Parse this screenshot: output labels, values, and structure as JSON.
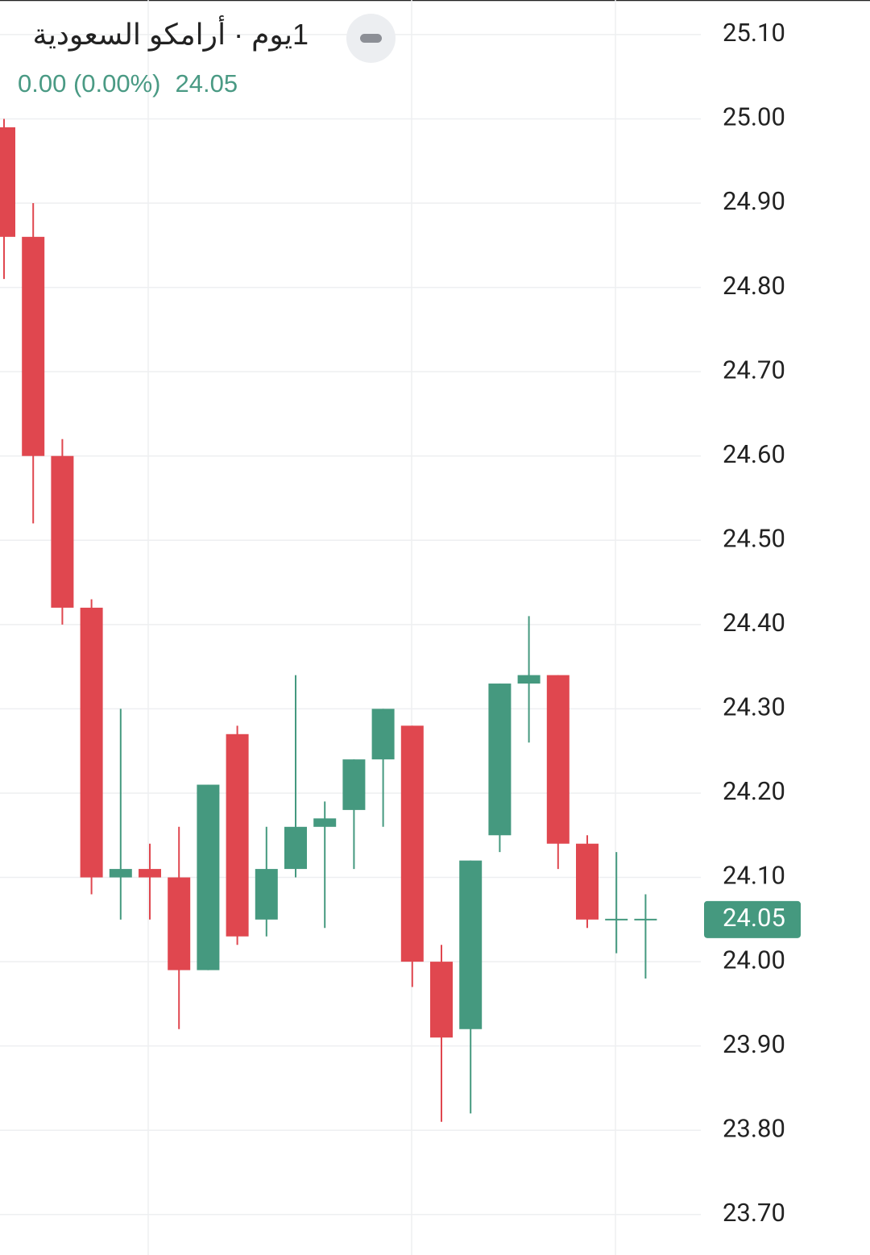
{
  "chart_data": {
    "type": "candlestick",
    "title": "1يوم · أرامكو السعودية",
    "change": "0.00 (0.00%)",
    "last_price": 24.05,
    "up_color": "#45997f",
    "down_color": "#e0474f",
    "open": [
      24.99,
      24.86,
      24.6,
      24.42,
      24.1,
      24.11,
      24.1,
      23.99,
      24.27,
      24.05,
      24.11,
      24.16,
      24.18,
      24.24,
      24.28,
      24.0,
      23.92,
      24.15,
      24.33,
      24.34,
      24.14,
      24.05,
      24.05
    ],
    "high": [
      25.0,
      24.9,
      24.62,
      24.43,
      24.3,
      24.14,
      24.16,
      24.21,
      24.28,
      24.16,
      24.34,
      24.19,
      24.24,
      24.3,
      24.28,
      24.02,
      24.12,
      24.33,
      24.41,
      24.34,
      24.15,
      24.13,
      24.08
    ],
    "low": [
      24.81,
      24.52,
      24.4,
      24.08,
      24.05,
      24.05,
      23.92,
      23.99,
      24.02,
      24.03,
      24.1,
      24.04,
      24.11,
      24.16,
      23.97,
      23.81,
      23.82,
      24.13,
      24.26,
      24.11,
      24.04,
      24.01,
      23.98
    ],
    "close": [
      24.86,
      24.6,
      24.42,
      24.1,
      24.11,
      24.1,
      23.99,
      24.21,
      24.03,
      24.11,
      24.16,
      24.17,
      24.24,
      24.3,
      24.0,
      23.91,
      24.12,
      24.33,
      24.34,
      24.14,
      24.05,
      24.05,
      24.05
    ],
    "ylim": [
      23.652,
      25.141
    ],
    "yticks": [
      {
        "value": 23.7,
        "label": "23.70"
      },
      {
        "value": 23.8,
        "label": "23.80"
      },
      {
        "value": 23.9,
        "label": "23.90"
      },
      {
        "value": 24.0,
        "label": "24.00"
      },
      {
        "value": 24.1,
        "label": "24.10"
      },
      {
        "value": 24.2,
        "label": "24.20"
      },
      {
        "value": 24.3,
        "label": "24.30"
      },
      {
        "value": 24.4,
        "label": "24.40"
      },
      {
        "value": 24.5,
        "label": "24.50"
      },
      {
        "value": 24.6,
        "label": "24.60"
      },
      {
        "value": 24.7,
        "label": "24.70"
      },
      {
        "value": 24.8,
        "label": "24.80"
      },
      {
        "value": 24.9,
        "label": "24.90"
      },
      {
        "value": 25.0,
        "label": "25.00"
      },
      {
        "value": 25.1,
        "label": "25.10"
      }
    ],
    "grid": true
  }
}
